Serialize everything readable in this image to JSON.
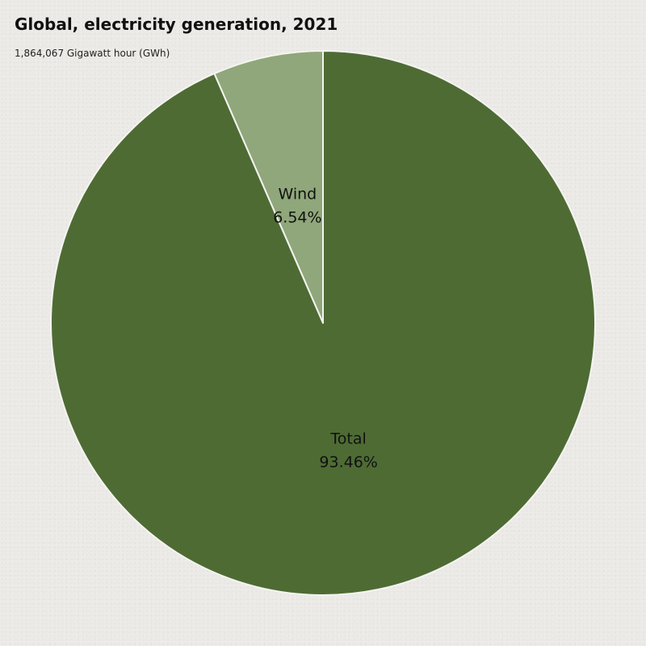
{
  "header": {
    "title": "Global, electricity generation, 2021",
    "subtitle": "1,864,067 Gigawatt hour (GWh)"
  },
  "chart_data": {
    "type": "pie",
    "title": "Global, electricity generation, 2021",
    "subtitle": "1,864,067 Gigawatt hour (GWh)",
    "categories": [
      "Wind",
      "Total"
    ],
    "values": [
      6.54,
      93.46
    ],
    "labels": [
      "6.54%",
      "93.46%"
    ],
    "colors": [
      "#8fa77a",
      "#4e6b34"
    ],
    "start_angle": "12 o'clock",
    "direction": "counter-clockwise"
  }
}
